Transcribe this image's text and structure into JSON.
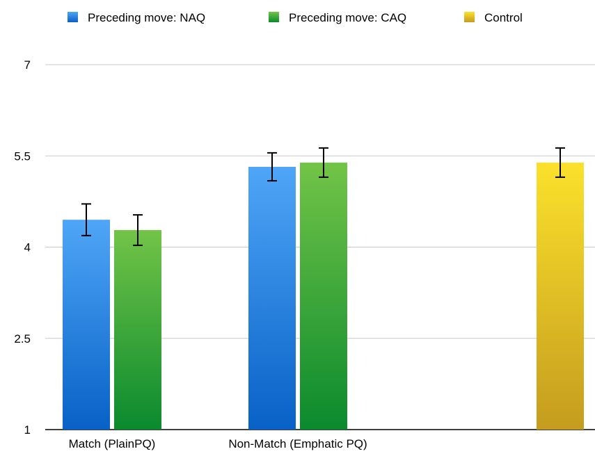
{
  "chart_data": {
    "type": "bar",
    "categories": [
      "Match (PlainPQ)",
      "Non-Match (Emphatic PQ)",
      ""
    ],
    "series": [
      {
        "name": "Preceding move: NAQ",
        "color": "#1a73d9",
        "values": [
          4.45,
          5.32,
          null
        ],
        "error": [
          0.26,
          0.23,
          null
        ]
      },
      {
        "name": "Preceding move: CAQ",
        "color": "#2e9e3a",
        "values": [
          4.28,
          5.39,
          null
        ],
        "error": [
          0.25,
          0.24,
          null
        ]
      },
      {
        "name": "Control",
        "color": "#e0b41c",
        "values": [
          null,
          null,
          5.39
        ],
        "error": [
          null,
          null,
          0.24
        ]
      }
    ],
    "yticks": [
      "1",
      "2.5",
      "4",
      "5.5",
      "7"
    ],
    "ylim": [
      1,
      7
    ],
    "grid": true,
    "legend_position": "top"
  }
}
